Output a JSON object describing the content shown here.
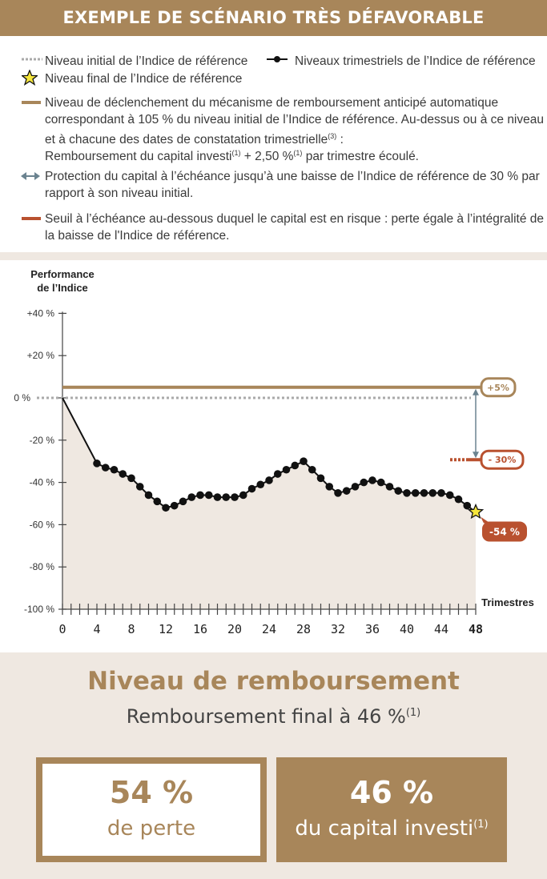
{
  "header": {
    "title": "EXEMPLE DE SCÉNARIO TRÈS DÉFAVORABLE"
  },
  "legend": {
    "initial_level": "Niveau initial de l’Indice de référence",
    "quarterly_levels": "Niveaux trimestriels de l’Indice de référence",
    "final_level": "Niveau final de l’Indice de référence",
    "trigger_line1": "Niveau de déclenchement du mécanisme de remboursement anticipé automatique",
    "trigger_line2": "correspondant à 105 % du niveau initial de l’Indice de référence. Au-dessus ou à ce niveau",
    "trigger_line3": "et à chacune des dates de constatation trimestrielle",
    "trigger_line3_sup": "(3)",
    "trigger_line3_end": " :",
    "trigger_line4a": "Remboursement du capital investi",
    "trigger_line4_sup1": "(1)",
    "trigger_line4b": " + 2,50 %",
    "trigger_line4_sup2": "(1)",
    "trigger_line4c": " par trimestre écoulé.",
    "protection_line1": "Protection du capital à l’échéance jusqu’à une baisse de l’Indice de référence de 30 % par",
    "protection_line2": "rapport à son niveau initial.",
    "threshold_line1": "Seuil à l’échéance au-dessous duquel le capital est en risque : perte égale à l’intégralité de",
    "threshold_line2": "la baisse de l'Indice de référence."
  },
  "colors": {
    "gold": "#a8865a",
    "red": "#b9512f",
    "arrow": "#6b8390",
    "dotted": "#aaaaaa",
    "area": "#efe8e1",
    "star": "#f5e63c"
  },
  "chart_data": {
    "type": "line",
    "title": "",
    "ylabel_line1": "Performance",
    "ylabel_line2": "de l’Indice",
    "xlabel": "Trimestres",
    "ylim": [
      -100,
      40
    ],
    "xlim": [
      0,
      48
    ],
    "yticks": [
      40,
      20,
      0,
      -20,
      -40,
      -60,
      -80,
      -100
    ],
    "ytick_labels": [
      "+40 %",
      "+20 %",
      "0 %",
      "-20 %",
      "-40 %",
      "-60 %",
      "-80 %",
      "-100 %"
    ],
    "xticks_labeled": [
      0,
      4,
      8,
      12,
      16,
      20,
      24,
      28,
      32,
      36,
      40,
      44,
      48
    ],
    "trigger_level": 5,
    "protection_level": -30,
    "final_level": -54,
    "labels": {
      "trigger": "+5%",
      "protection": "- 30%",
      "final": "-54 %"
    },
    "series": [
      {
        "x": [
          0,
          4,
          5,
          6,
          7,
          8,
          9,
          10,
          11,
          12,
          13,
          14,
          15,
          16,
          17,
          18,
          19,
          20,
          21,
          22,
          23,
          24,
          25,
          26,
          27,
          28,
          29,
          30,
          31,
          32,
          33,
          34,
          35,
          36,
          37,
          38,
          39,
          40,
          41,
          42,
          43,
          44,
          45,
          46,
          47,
          48
        ],
        "values": [
          0,
          -31,
          -33,
          -34,
          -36,
          -38,
          -42,
          -46,
          -49,
          -52,
          -51,
          -49,
          -47,
          -46,
          -46,
          -47,
          -47,
          -47,
          -46,
          -43,
          -41,
          -39,
          -36,
          -34,
          -32,
          -30,
          -34,
          -38,
          -42,
          -45,
          -44,
          -42,
          -40,
          -39,
          -40,
          -42,
          -44,
          -45,
          -45,
          -45,
          -45,
          -45,
          -46,
          -48,
          -51,
          -54
        ]
      }
    ]
  },
  "result": {
    "title": "Niveau de remboursement",
    "subtitle": "Remboursement final à 46 %",
    "subtitle_sup": "(1)",
    "loss_value": "54 %",
    "loss_label": "de perte",
    "capital_value": "46 %",
    "capital_label": "du capital investi",
    "capital_sup": "(1)"
  }
}
